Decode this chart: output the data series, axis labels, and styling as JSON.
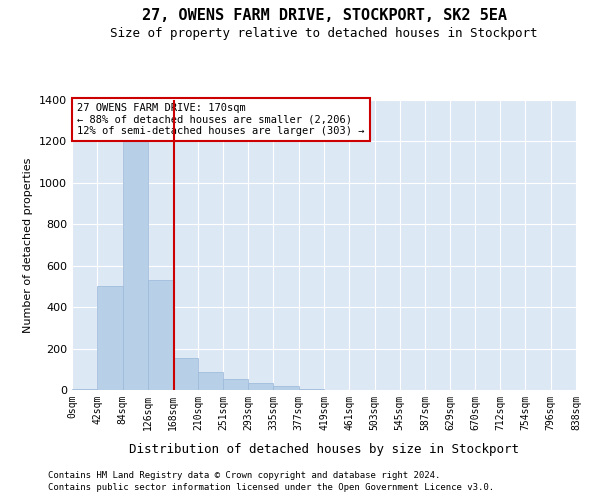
{
  "title": "27, OWENS FARM DRIVE, STOCKPORT, SK2 5EA",
  "subtitle": "Size of property relative to detached houses in Stockport",
  "xlabel": "Distribution of detached houses by size in Stockport",
  "ylabel": "Number of detached properties",
  "bar_color": "#b8cfe8",
  "bar_edge_color": "#99b8d8",
  "background_color": "#dde8f5",
  "grid_color": "#ffffff",
  "vline_x": 170,
  "vline_color": "#cc0000",
  "bin_edges": [
    0,
    42,
    84,
    126,
    168,
    210,
    251,
    293,
    335,
    377,
    419,
    461,
    503,
    545,
    587,
    629,
    670,
    712,
    754,
    796,
    838
  ],
  "bar_heights": [
    5,
    500,
    1230,
    530,
    155,
    85,
    55,
    35,
    20,
    5,
    0,
    0,
    0,
    0,
    0,
    0,
    0,
    0,
    0,
    0
  ],
  "ylim": [
    0,
    1400
  ],
  "yticks": [
    0,
    200,
    400,
    600,
    800,
    1000,
    1200,
    1400
  ],
  "annotation_text": "27 OWENS FARM DRIVE: 170sqm\n← 88% of detached houses are smaller (2,206)\n12% of semi-detached houses are larger (303) →",
  "annotation_box_color": "#ffffff",
  "annotation_border_color": "#cc0000",
  "fig_bg": "#ffffff",
  "footnote1": "Contains HM Land Registry data © Crown copyright and database right 2024.",
  "footnote2": "Contains public sector information licensed under the Open Government Licence v3.0."
}
